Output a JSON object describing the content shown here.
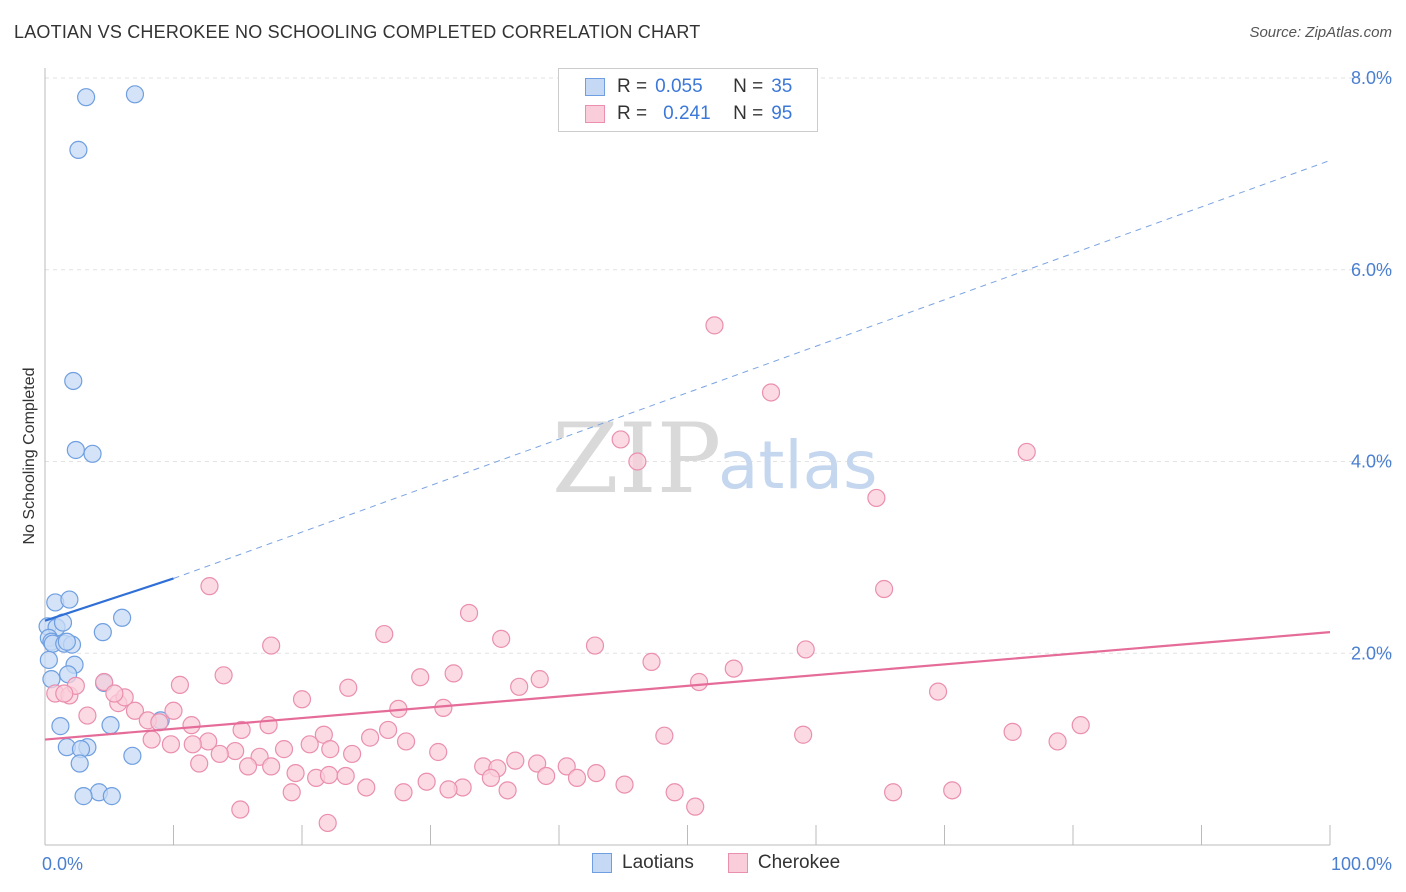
{
  "chart_data": {
    "type": "scatter",
    "title": "LAOTIAN VS CHEROKEE NO SCHOOLING COMPLETED CORRELATION CHART",
    "source": "Source: ZipAtlas.com",
    "ylabel": "No Schooling Completed",
    "xlim": [
      0,
      100
    ],
    "ylim": [
      0,
      8
    ],
    "x_tick_labels": [
      "0.0%",
      "100.0%"
    ],
    "y_ticks": [
      2,
      4,
      6,
      8
    ],
    "y_tick_labels": [
      "2.0%",
      "4.0%",
      "6.0%",
      "8.0%"
    ],
    "watermark": {
      "zip": "ZIP",
      "atlas": "atlas"
    },
    "legend": [
      {
        "name": "Laotians",
        "r_label": "R =",
        "r": "0.055",
        "n_label": "N =",
        "n": "35",
        "color": "#6f9fe0",
        "fill": "#c5d9f5"
      },
      {
        "name": "Cherokee",
        "r_label": "R =",
        "r": "0.241",
        "n_label": "N =",
        "n": "95",
        "color": "#ea8fae",
        "fill": "#f9cdd9"
      }
    ],
    "series": [
      {
        "name": "Laotians",
        "points": [
          [
            3.2,
            7.8
          ],
          [
            7.0,
            7.83
          ],
          [
            2.6,
            7.25
          ],
          [
            2.2,
            4.84
          ],
          [
            2.4,
            4.12
          ],
          [
            3.7,
            4.08
          ],
          [
            0.8,
            2.53
          ],
          [
            1.9,
            2.56
          ],
          [
            6.0,
            2.37
          ],
          [
            0.2,
            2.28
          ],
          [
            0.9,
            2.27
          ],
          [
            1.4,
            2.32
          ],
          [
            0.3,
            2.16
          ],
          [
            0.5,
            2.12
          ],
          [
            0.6,
            2.1
          ],
          [
            1.5,
            2.1
          ],
          [
            2.1,
            2.09
          ],
          [
            4.5,
            2.22
          ],
          [
            1.7,
            2.12
          ],
          [
            0.3,
            1.93
          ],
          [
            2.3,
            1.88
          ],
          [
            1.8,
            1.78
          ],
          [
            0.5,
            1.73
          ],
          [
            4.6,
            1.69
          ],
          [
            5.1,
            1.25
          ],
          [
            9.0,
            1.3
          ],
          [
            1.2,
            1.24
          ],
          [
            1.7,
            1.02
          ],
          [
            3.3,
            1.02
          ],
          [
            2.8,
            1.0
          ],
          [
            6.8,
            0.93
          ],
          [
            2.7,
            0.85
          ],
          [
            4.2,
            0.55
          ],
          [
            3.0,
            0.51
          ],
          [
            5.2,
            0.51
          ]
        ]
      },
      {
        "name": "Cherokee",
        "points": [
          [
            52.1,
            5.42
          ],
          [
            56.5,
            4.72
          ],
          [
            76.4,
            4.1
          ],
          [
            44.8,
            4.23
          ],
          [
            46.1,
            4.0
          ],
          [
            64.7,
            3.62
          ],
          [
            65.3,
            2.67
          ],
          [
            12.8,
            2.7
          ],
          [
            33.0,
            2.42
          ],
          [
            35.5,
            2.15
          ],
          [
            26.4,
            2.2
          ],
          [
            17.6,
            2.08
          ],
          [
            59.2,
            2.04
          ],
          [
            42.8,
            2.08
          ],
          [
            38.5,
            1.73
          ],
          [
            31.8,
            1.79
          ],
          [
            47.2,
            1.91
          ],
          [
            53.6,
            1.84
          ],
          [
            13.9,
            1.77
          ],
          [
            36.9,
            1.65
          ],
          [
            23.6,
            1.64
          ],
          [
            50.9,
            1.7
          ],
          [
            29.2,
            1.75
          ],
          [
            69.5,
            1.6
          ],
          [
            10.5,
            1.67
          ],
          [
            20.0,
            1.52
          ],
          [
            27.5,
            1.42
          ],
          [
            31.0,
            1.43
          ],
          [
            0.8,
            1.58
          ],
          [
            1.9,
            1.56
          ],
          [
            2.4,
            1.66
          ],
          [
            3.3,
            1.35
          ],
          [
            1.5,
            1.58
          ],
          [
            4.6,
            1.7
          ],
          [
            5.7,
            1.48
          ],
          [
            6.2,
            1.54
          ],
          [
            7.0,
            1.4
          ],
          [
            8.0,
            1.3
          ],
          [
            8.9,
            1.28
          ],
          [
            5.4,
            1.58
          ],
          [
            10.0,
            1.4
          ],
          [
            11.4,
            1.25
          ],
          [
            15.3,
            1.2
          ],
          [
            17.4,
            1.25
          ],
          [
            21.7,
            1.15
          ],
          [
            25.3,
            1.12
          ],
          [
            26.7,
            1.2
          ],
          [
            28.1,
            1.08
          ],
          [
            20.6,
            1.05
          ],
          [
            22.2,
            1.0
          ],
          [
            12.7,
            1.08
          ],
          [
            16.7,
            0.92
          ],
          [
            18.6,
            1.0
          ],
          [
            23.9,
            0.95
          ],
          [
            30.6,
            0.97
          ],
          [
            14.8,
            0.98
          ],
          [
            9.8,
            1.05
          ],
          [
            11.5,
            1.05
          ],
          [
            8.3,
            1.1
          ],
          [
            12.0,
            0.85
          ],
          [
            13.6,
            0.95
          ],
          [
            15.8,
            0.82
          ],
          [
            17.6,
            0.82
          ],
          [
            19.5,
            0.75
          ],
          [
            21.1,
            0.7
          ],
          [
            22.1,
            0.73
          ],
          [
            23.4,
            0.72
          ],
          [
            19.2,
            0.55
          ],
          [
            25.0,
            0.6
          ],
          [
            34.1,
            0.82
          ],
          [
            35.2,
            0.8
          ],
          [
            36.6,
            0.88
          ],
          [
            38.3,
            0.85
          ],
          [
            39.0,
            0.72
          ],
          [
            40.6,
            0.82
          ],
          [
            41.4,
            0.7
          ],
          [
            42.9,
            0.75
          ],
          [
            45.1,
            0.63
          ],
          [
            32.5,
            0.6
          ],
          [
            27.9,
            0.55
          ],
          [
            31.4,
            0.58
          ],
          [
            29.7,
            0.66
          ],
          [
            34.7,
            0.7
          ],
          [
            36.0,
            0.57
          ],
          [
            48.2,
            1.14
          ],
          [
            59.0,
            1.15
          ],
          [
            75.3,
            1.18
          ],
          [
            78.8,
            1.08
          ],
          [
            80.6,
            1.25
          ],
          [
            70.6,
            0.57
          ],
          [
            66.0,
            0.55
          ],
          [
            49.0,
            0.55
          ],
          [
            50.6,
            0.4
          ],
          [
            15.2,
            0.37
          ],
          [
            22.0,
            0.23
          ]
        ]
      }
    ],
    "trendlines": [
      {
        "series": "Laotians",
        "solid": [
          [
            0,
            2.34
          ],
          [
            10,
            2.78
          ]
        ],
        "dashed": [
          [
            10,
            2.78
          ],
          [
            100,
            7.14
          ]
        ]
      },
      {
        "series": "Cherokee",
        "solid": [
          [
            0,
            1.1
          ],
          [
            100,
            2.22
          ]
        ]
      }
    ]
  }
}
